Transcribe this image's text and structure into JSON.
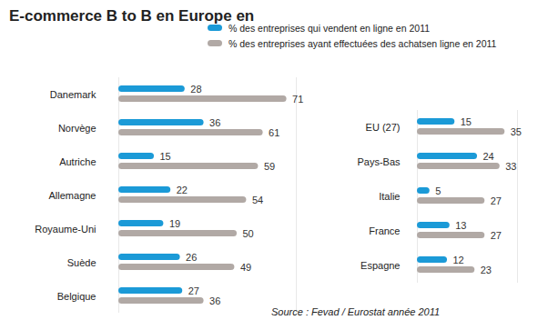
{
  "chart_data": [
    {
      "type": "bar",
      "title": "E-commerce B to B en Europe en",
      "orientation": "horizontal",
      "legend": "top",
      "data_labels": true,
      "tick_labels": "y",
      "categories": [
        "Danemark",
        "Norvège",
        "Autriche",
        "Allemagne",
        "Royaume-Uni",
        "Suède",
        "Belgique"
      ],
      "series": [
        {
          "name": "% des entreprises qui vendent en ligne en 2011",
          "color": "#1b9ad7",
          "values": [
            28,
            36,
            15,
            22,
            19,
            26,
            27
          ]
        },
        {
          "name": "% des entreprises ayant effectuées des achatsen ligne en 2011",
          "color": "#b1a9a5",
          "values": [
            71,
            61,
            59,
            54,
            50,
            49,
            36
          ]
        }
      ],
      "xlim": [
        0,
        75
      ]
    },
    {
      "type": "bar",
      "orientation": "horizontal",
      "data_labels": true,
      "tick_labels": "y",
      "source": "Source : Fevad / Eurostat année 2011",
      "categories": [
        "EU (27)",
        "Pays-Bas",
        "Italie",
        "France",
        "Espagne"
      ],
      "series": [
        {
          "name": "% des entreprises qui vendent en ligne en 2011",
          "color": "#1b9ad7",
          "values": [
            15,
            24,
            5,
            13,
            12
          ]
        },
        {
          "name": "% des entreprises ayant effectuées des achatsen ligne en 2011",
          "color": "#b1a9a5",
          "values": [
            35,
            33,
            27,
            27,
            23
          ]
        }
      ],
      "xlim": [
        0,
        40
      ]
    }
  ]
}
